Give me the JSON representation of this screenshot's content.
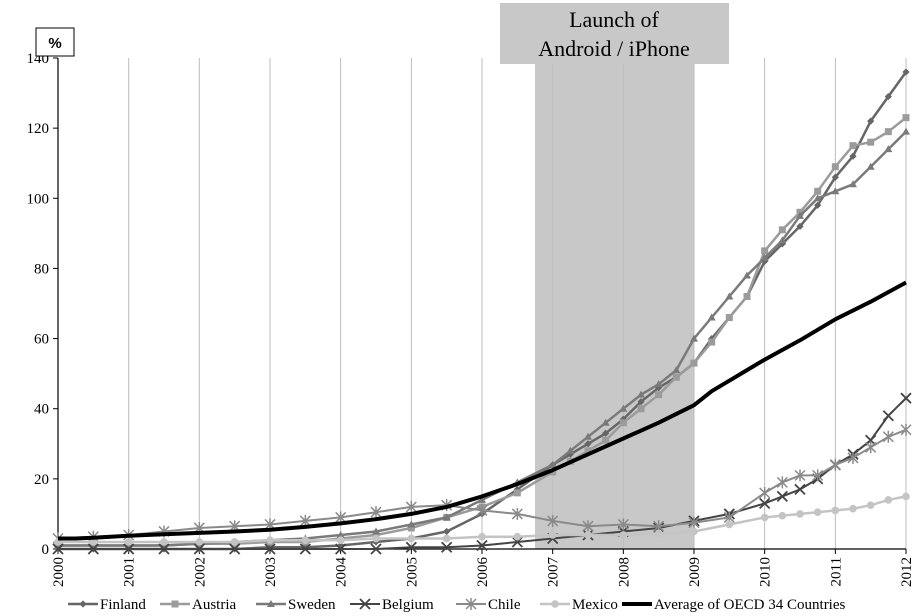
{
  "chart_data": {
    "type": "line",
    "title": "",
    "xlabel": "",
    "ylabel": "%",
    "xlim": [
      2000,
      2012
    ],
    "ylim": [
      0,
      140
    ],
    "y_ticks": [
      0,
      20,
      40,
      60,
      80,
      100,
      120,
      140
    ],
    "x_ticks": [
      "2000",
      "2001",
      "2002",
      "2003",
      "2004",
      "2005",
      "2006",
      "2007",
      "2008",
      "2009",
      "2010",
      "2011",
      "2012"
    ],
    "grid": "vertical",
    "legend_position": "bottom",
    "annotation": {
      "line1": "Launch of",
      "line2": "Android / iPhone",
      "x_from": 2006.75,
      "x_to": 2009.0
    },
    "series": [
      {
        "name": "Finland",
        "color": "#666666",
        "marker": "diamond",
        "width": 2.5,
        "x": [
          2000,
          2000.5,
          2001,
          2001.5,
          2002,
          2002.5,
          2003,
          2003.5,
          2004,
          2004.5,
          2005,
          2005.5,
          2006,
          2006.5,
          2007,
          2007.25,
          2007.5,
          2007.75,
          2008,
          2008.25,
          2008.5,
          2008.75,
          2009,
          2009.25,
          2009.5,
          2009.75,
          2010,
          2010.25,
          2010.5,
          2010.75,
          2011,
          2011.25,
          2011.5,
          2011.75,
          2012
        ],
        "y": [
          0,
          0,
          0,
          0,
          0,
          0,
          0.5,
          0.5,
          1,
          2,
          3,
          5,
          10,
          17,
          24,
          27,
          30,
          33,
          37,
          42,
          46,
          49,
          53,
          60,
          66,
          72,
          82,
          87,
          92,
          98,
          106,
          112,
          122,
          129,
          136
        ]
      },
      {
        "name": "Austria",
        "color": "#9b9b9b",
        "marker": "square",
        "width": 2.5,
        "x": [
          2000,
          2000.5,
          2001,
          2001.5,
          2002,
          2002.5,
          2003,
          2003.5,
          2004,
          2004.5,
          2005,
          2005.5,
          2006,
          2006.5,
          2007,
          2007.25,
          2007.5,
          2007.75,
          2008,
          2008.25,
          2008.5,
          2008.75,
          2009,
          2009.25,
          2009.5,
          2009.75,
          2010,
          2010.25,
          2010.5,
          2010.75,
          2011,
          2011.25,
          2011.5,
          2011.75,
          2012
        ],
        "y": [
          1,
          1,
          1,
          1,
          1.5,
          1.5,
          2,
          2,
          3,
          4,
          6,
          9,
          12,
          16,
          22,
          25,
          28,
          31,
          36,
          40,
          44,
          49,
          53,
          59,
          66,
          72,
          85,
          91,
          96,
          102,
          109,
          115,
          116,
          119,
          123
        ]
      },
      {
        "name": "Sweden",
        "color": "#7a7a7a",
        "marker": "triangle",
        "width": 2.5,
        "x": [
          2000,
          2000.5,
          2001,
          2001.5,
          2002,
          2002.5,
          2003,
          2003.5,
          2004,
          2004.5,
          2005,
          2005.5,
          2006,
          2006.5,
          2007,
          2007.25,
          2007.5,
          2007.75,
          2008,
          2008.25,
          2008.5,
          2008.75,
          2009,
          2009.25,
          2009.5,
          2009.75,
          2010,
          2010.25,
          2010.5,
          2010.75,
          2011,
          2011.25,
          2011.5,
          2011.75,
          2012
        ],
        "y": [
          1,
          1,
          1,
          1,
          1.5,
          2,
          2.5,
          3,
          4,
          5,
          7,
          9,
          14,
          19,
          24,
          28,
          32,
          36,
          40,
          44,
          47,
          51,
          60,
          66,
          72,
          78,
          83,
          88,
          95,
          100,
          102,
          104,
          109,
          114,
          119
        ]
      },
      {
        "name": "Belgium",
        "color": "#444444",
        "marker": "x",
        "width": 2,
        "x": [
          2000,
          2000.5,
          2001,
          2001.5,
          2002,
          2002.5,
          2003,
          2003.5,
          2004,
          2004.5,
          2005,
          2005.5,
          2006,
          2006.5,
          2007,
          2007.5,
          2008,
          2008.5,
          2009,
          2009.5,
          2010,
          2010.25,
          2010.5,
          2010.75,
          2011,
          2011.25,
          2011.5,
          2011.75,
          2012
        ],
        "y": [
          0,
          0,
          0,
          0,
          0,
          0,
          0,
          0,
          0,
          0,
          0.5,
          0.5,
          1,
          2,
          3,
          4,
          5,
          6,
          8,
          10,
          13,
          15,
          17,
          20,
          24,
          27,
          31,
          38,
          43
        ]
      },
      {
        "name": "Chile",
        "color": "#8a8a8a",
        "marker": "star",
        "width": 2,
        "x": [
          2000,
          2000.5,
          2001,
          2001.5,
          2002,
          2002.5,
          2003,
          2003.5,
          2004,
          2004.5,
          2005,
          2005.5,
          2006,
          2006.5,
          2007,
          2007.5,
          2008,
          2008.5,
          2009,
          2009.5,
          2010,
          2010.25,
          2010.5,
          2010.75,
          2011,
          2011.25,
          2011.5,
          2011.75,
          2012
        ],
        "y": [
          3,
          3.5,
          4,
          5,
          6,
          6.5,
          7,
          8,
          9,
          10.5,
          12,
          12.5,
          11,
          10,
          8,
          6.5,
          7,
          6.5,
          7.5,
          9,
          16,
          19,
          21,
          21,
          24,
          26,
          29,
          32,
          34
        ]
      },
      {
        "name": "Mexico",
        "color": "#c4c4c4",
        "marker": "circle",
        "width": 2.5,
        "x": [
          2000,
          2000.5,
          2001,
          2001.5,
          2002,
          2002.5,
          2003,
          2003.5,
          2004,
          2004.5,
          2005,
          2005.5,
          2006,
          2006.5,
          2007,
          2007.5,
          2008,
          2008.5,
          2009,
          2009.5,
          2010,
          2010.25,
          2010.5,
          2010.75,
          2011,
          2011.25,
          2011.5,
          2011.75,
          2012
        ],
        "y": [
          2,
          2,
          2,
          2,
          2,
          2,
          2.5,
          2.5,
          2.5,
          3,
          3,
          3,
          3.5,
          3.5,
          4,
          4,
          4,
          4.5,
          5,
          7,
          9,
          9.5,
          10,
          10.5,
          11,
          11.5,
          12.5,
          14,
          15
        ]
      },
      {
        "name": "Average of OECD 34 Countries",
        "color": "#000000",
        "marker": "none",
        "width": 4,
        "x": [
          2000,
          2000.25,
          2000.5,
          2000.75,
          2001,
          2001.5,
          2002,
          2002.5,
          2003,
          2003.5,
          2004,
          2004.5,
          2005,
          2005.5,
          2006,
          2006.5,
          2007,
          2007.5,
          2008,
          2008.5,
          2009,
          2009.25,
          2009.5,
          2009.75,
          2010,
          2010.5,
          2011,
          2011.5,
          2012
        ],
        "y": [
          3,
          3,
          3.2,
          3.5,
          3.8,
          4.2,
          4.6,
          5,
          5.5,
          6.3,
          7.3,
          8.5,
          10,
          12,
          15,
          18.5,
          22.5,
          27,
          31.5,
          36,
          41,
          45,
          48,
          51,
          54,
          59.5,
          65.5,
          70.5,
          76
        ]
      }
    ]
  }
}
